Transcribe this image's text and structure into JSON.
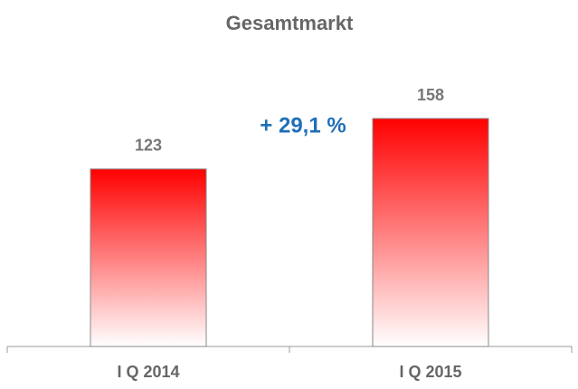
{
  "chart_data": {
    "type": "bar",
    "title": "Gesamtmarkt",
    "categories": [
      "I Q 2014",
      "I Q 2015"
    ],
    "values": [
      123,
      158
    ],
    "color": "#ff0000",
    "annotation": "+ 29,1 %"
  }
}
